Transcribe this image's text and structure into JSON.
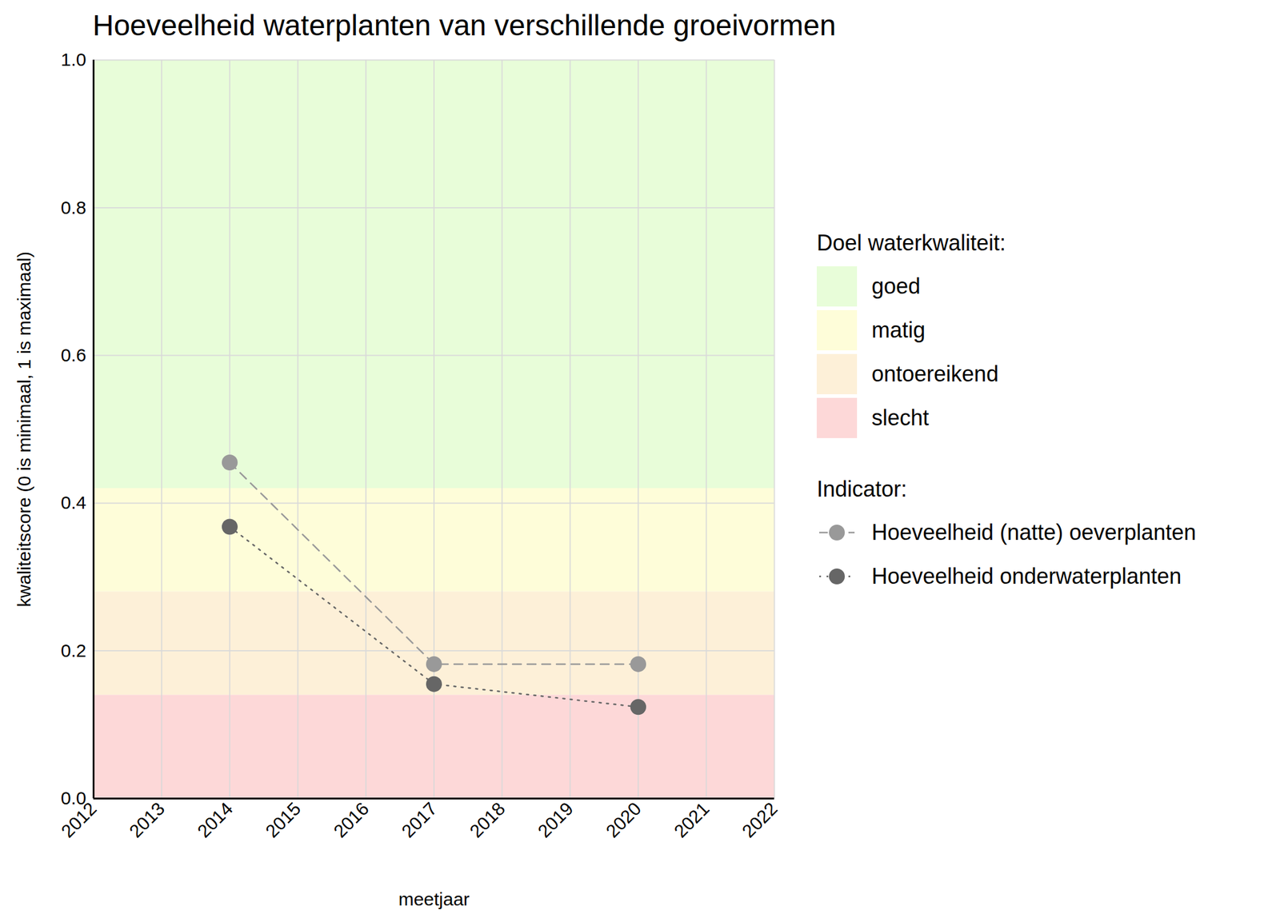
{
  "chart_data": {
    "type": "line",
    "title": "Hoeveelheid waterplanten van verschillende groeivormen",
    "x_label": "meetjaar",
    "y_label": "kwaliteitscore (0 is minimaal, 1 is maximaal)",
    "x": [
      2014,
      2017,
      2020
    ],
    "series": [
      {
        "name": "Hoeveelheid (natte) oeverplanten",
        "color": "#999999",
        "line_style": "dashed",
        "marker": "circle",
        "values": [
          0.455,
          0.182,
          0.182
        ]
      },
      {
        "name": "Hoeveelheid onderwaterplanten",
        "color": "#666666",
        "line_style": "dotted",
        "marker": "circle",
        "values": [
          0.368,
          0.155,
          0.124
        ]
      }
    ],
    "xlim": [
      2012,
      2022
    ],
    "xticks": [
      2012,
      2013,
      2014,
      2015,
      2016,
      2017,
      2018,
      2019,
      2020,
      2021,
      2022
    ],
    "ylim": [
      0,
      1
    ],
    "yticks": [
      {
        "value": 0,
        "label": "0.0"
      },
      0.2,
      0.4,
      0.6,
      0.8,
      {
        "value": 1,
        "label": "1.0"
      }
    ],
    "grid": true,
    "legend": "right",
    "legend_title": "Indicator:",
    "bands_title": "Doel waterkwaliteit:",
    "bands": [
      {
        "name": "goed",
        "color": "#e8fdd9",
        "from": 0.42,
        "to": 1
      },
      {
        "name": "matig",
        "color": "#fefdd9",
        "from": 0.28,
        "to": 0.42
      },
      {
        "name": "ontoereikend",
        "color": "#fdf0d8",
        "from": 0.14,
        "to": 0.28
      },
      {
        "name": "slecht",
        "color": "#fdd8d8",
        "from": 0,
        "to": 0.14
      }
    ]
  }
}
